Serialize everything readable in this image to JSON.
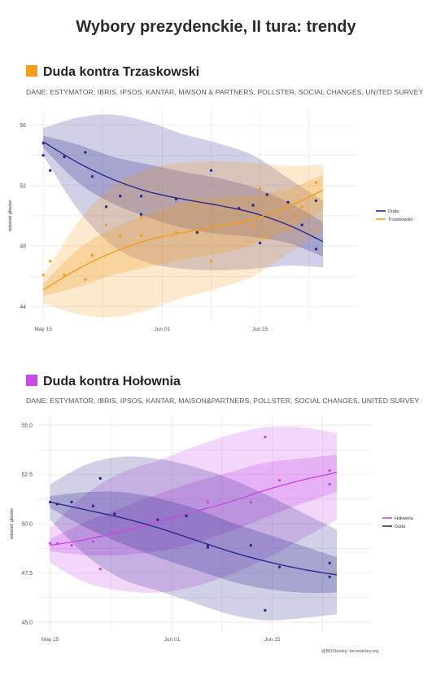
{
  "title": "Wybory prezydenckie, II tura: trendy",
  "credit": "@BDStanley; benstanley.org",
  "colors": {
    "duda": "#2b2b8f",
    "trzaskowski": "#f59c1a",
    "holownia": "#c64be6"
  },
  "chart_data": [
    {
      "type": "line",
      "title": "Duda kontra Trzaskowski",
      "title_swatch": "#f59c1a",
      "subtitle": "DANE: ESTYMATOR, IBRIS, IPSOS, KANTAR, MAISON & PARTNERS, POLLSTER, SOCIAL CHANGES, UNITED SURVEY",
      "ylabel": "odsetek głosów",
      "ylim": [
        43,
        57
      ],
      "yticks": [
        44,
        48,
        52,
        56
      ],
      "xlim": [
        "2020-05-13",
        "2020-06-29"
      ],
      "xticks": [
        {
          "date": "2020-05-15",
          "label": "May 15"
        },
        {
          "date": "2020-06-01",
          "label": "Jun 01"
        },
        {
          "date": "2020-06-15",
          "label": "Jun 15"
        }
      ],
      "grid": true,
      "legend_position": "right",
      "series": [
        {
          "name": "Duda",
          "color": "#2b2b8f",
          "trend": [
            {
              "date": "2020-05-15",
              "y": 54.9,
              "inner": [
                54.5,
                55.3
              ],
              "outer": [
                54.0,
                55.8
              ]
            },
            {
              "date": "2020-05-20",
              "y": 53.5,
              "inner": [
                52.2,
                54.7
              ],
              "outer": [
                50.4,
                56.5
              ]
            },
            {
              "date": "2020-05-25",
              "y": 52.4,
              "inner": [
                50.8,
                53.9
              ],
              "outer": [
                48.0,
                56.7
              ]
            },
            {
              "date": "2020-05-30",
              "y": 51.6,
              "inner": [
                49.9,
                53.4
              ],
              "outer": [
                46.9,
                56.2
              ]
            },
            {
              "date": "2020-06-04",
              "y": 51.1,
              "inner": [
                49.2,
                52.9
              ],
              "outer": [
                46.5,
                55.4
              ]
            },
            {
              "date": "2020-06-09",
              "y": 50.7,
              "inner": [
                48.8,
                52.5
              ],
              "outer": [
                46.4,
                54.8
              ]
            },
            {
              "date": "2020-06-14",
              "y": 50.2,
              "inner": [
                48.6,
                51.9
              ],
              "outer": [
                46.5,
                54.0
              ]
            },
            {
              "date": "2020-06-19",
              "y": 49.4,
              "inner": [
                48.2,
                50.9
              ],
              "outer": [
                46.7,
                52.5
              ]
            },
            {
              "date": "2020-06-24",
              "y": 48.3,
              "inner": [
                47.3,
                49.6
              ],
              "outer": [
                46.6,
                51.0
              ]
            }
          ],
          "points": [
            {
              "date": "2020-05-15",
              "y": 54.8
            },
            {
              "date": "2020-05-15",
              "y": 54.0
            },
            {
              "date": "2020-05-16",
              "y": 53.0
            },
            {
              "date": "2020-05-18",
              "y": 53.9
            },
            {
              "date": "2020-05-21",
              "y": 54.2
            },
            {
              "date": "2020-05-22",
              "y": 52.6
            },
            {
              "date": "2020-05-24",
              "y": 50.6
            },
            {
              "date": "2020-05-26",
              "y": 51.3
            },
            {
              "date": "2020-05-29",
              "y": 51.3
            },
            {
              "date": "2020-05-29",
              "y": 50.1
            },
            {
              "date": "2020-06-03",
              "y": 51.1
            },
            {
              "date": "2020-06-06",
              "y": 48.9
            },
            {
              "date": "2020-06-08",
              "y": 53.0
            },
            {
              "date": "2020-06-12",
              "y": 50.5
            },
            {
              "date": "2020-06-14",
              "y": 50.7
            },
            {
              "date": "2020-06-15",
              "y": 48.2
            },
            {
              "date": "2020-06-16",
              "y": 51.4
            },
            {
              "date": "2020-06-19",
              "y": 50.9
            },
            {
              "date": "2020-06-20",
              "y": 50.0
            },
            {
              "date": "2020-06-21",
              "y": 49.4
            },
            {
              "date": "2020-06-23",
              "y": 51.0
            },
            {
              "date": "2020-06-23",
              "y": 47.8
            }
          ]
        },
        {
          "name": "Trzaskowski",
          "color": "#f59c1a",
          "trend": [
            {
              "date": "2020-05-15",
              "y": 45.1,
              "inner": [
                44.7,
                45.5
              ],
              "outer": [
                44.2,
                46.0
              ]
            },
            {
              "date": "2020-05-20",
              "y": 46.5,
              "inner": [
                45.3,
                47.8
              ],
              "outer": [
                43.5,
                49.6
              ]
            },
            {
              "date": "2020-05-25",
              "y": 47.6,
              "inner": [
                46.1,
                49.2
              ],
              "outer": [
                43.3,
                52.0
              ]
            },
            {
              "date": "2020-05-30",
              "y": 48.4,
              "inner": [
                46.6,
                50.1
              ],
              "outer": [
                43.8,
                53.1
              ]
            },
            {
              "date": "2020-06-04",
              "y": 48.9,
              "inner": [
                47.1,
                50.8
              ],
              "outer": [
                44.6,
                53.5
              ]
            },
            {
              "date": "2020-06-09",
              "y": 49.3,
              "inner": [
                47.5,
                51.2
              ],
              "outer": [
                45.2,
                53.6
              ]
            },
            {
              "date": "2020-06-14",
              "y": 49.8,
              "inner": [
                48.1,
                51.4
              ],
              "outer": [
                46.0,
                53.5
              ]
            },
            {
              "date": "2020-06-19",
              "y": 50.6,
              "inner": [
                49.1,
                51.8
              ],
              "outer": [
                47.5,
                53.3
              ]
            },
            {
              "date": "2020-06-24",
              "y": 51.7,
              "inner": [
                50.4,
                52.7
              ],
              "outer": [
                49.0,
                53.4
              ]
            }
          ],
          "points": [
            {
              "date": "2020-05-15",
              "y": 46.1
            },
            {
              "date": "2020-05-16",
              "y": 47.0
            },
            {
              "date": "2020-05-18",
              "y": 46.1
            },
            {
              "date": "2020-05-21",
              "y": 45.8
            },
            {
              "date": "2020-05-22",
              "y": 47.4
            },
            {
              "date": "2020-05-24",
              "y": 49.4
            },
            {
              "date": "2020-05-26",
              "y": 48.7
            },
            {
              "date": "2020-05-29",
              "y": 48.7
            },
            {
              "date": "2020-05-29",
              "y": 49.9
            },
            {
              "date": "2020-06-03",
              "y": 48.9
            },
            {
              "date": "2020-06-06",
              "y": 51.1
            },
            {
              "date": "2020-06-08",
              "y": 47.0
            },
            {
              "date": "2020-06-12",
              "y": 49.5
            },
            {
              "date": "2020-06-14",
              "y": 49.3
            },
            {
              "date": "2020-06-15",
              "y": 51.8
            },
            {
              "date": "2020-06-16",
              "y": 48.6
            },
            {
              "date": "2020-06-19",
              "y": 49.1
            },
            {
              "date": "2020-06-20",
              "y": 50.0
            },
            {
              "date": "2020-06-21",
              "y": 50.6
            },
            {
              "date": "2020-06-23",
              "y": 49.0
            },
            {
              "date": "2020-06-23",
              "y": 52.2
            }
          ]
        }
      ]
    },
    {
      "type": "line",
      "title": "Duda kontra Hołownia",
      "title_swatch": "#c64be6",
      "subtitle": "DANE: ESTYMATOR, IBRIS, IPSOS, KANTAR, MAISON&PARTNERS, POLLSTER, SOCIAL CHANGES, UNITED SURVEY",
      "ylabel": "odsetek głosów",
      "ylim": [
        44.5,
        55.5
      ],
      "yticks": [
        45.0,
        47.5,
        50.0,
        52.5,
        55.0
      ],
      "xlim": [
        "2020-05-13",
        "2020-06-29"
      ],
      "xticks": [
        {
          "date": "2020-05-15",
          "label": "May 15"
        },
        {
          "date": "2020-06-01",
          "label": "Jun 01"
        },
        {
          "date": "2020-06-15",
          "label": "Jun 15"
        }
      ],
      "grid": true,
      "legend_position": "right",
      "series": [
        {
          "name": "Hołownia",
          "color": "#c64be6",
          "trend": [
            {
              "date": "2020-05-15",
              "y": 48.9,
              "inner": [
                48.6,
                49.2
              ],
              "outer": [
                48.0,
                49.8
              ]
            },
            {
              "date": "2020-05-20",
              "y": 49.2,
              "inner": [
                48.4,
                50.1
              ],
              "outer": [
                47.0,
                51.5
              ]
            },
            {
              "date": "2020-05-25",
              "y": 49.6,
              "inner": [
                48.4,
                50.8
              ],
              "outer": [
                46.6,
                52.6
              ]
            },
            {
              "date": "2020-05-30",
              "y": 50.1,
              "inner": [
                48.6,
                51.5
              ],
              "outer": [
                46.5,
                53.2
              ]
            },
            {
              "date": "2020-06-04",
              "y": 50.6,
              "inner": [
                49.0,
                52.1
              ],
              "outer": [
                46.8,
                53.9
              ]
            },
            {
              "date": "2020-06-09",
              "y": 51.1,
              "inner": [
                49.6,
                52.6
              ],
              "outer": [
                47.4,
                54.5
              ]
            },
            {
              "date": "2020-06-14",
              "y": 51.7,
              "inner": [
                50.3,
                53.1
              ],
              "outer": [
                48.2,
                54.9
              ]
            },
            {
              "date": "2020-06-19",
              "y": 52.2,
              "inner": [
                51.0,
                53.3
              ],
              "outer": [
                49.2,
                54.9
              ]
            },
            {
              "date": "2020-06-24",
              "y": 52.6,
              "inner": [
                51.6,
                53.5
              ],
              "outer": [
                50.2,
                54.6
              ]
            }
          ],
          "points": [
            {
              "date": "2020-05-15",
              "y": 49.0
            },
            {
              "date": "2020-05-16",
              "y": 49.0
            },
            {
              "date": "2020-05-18",
              "y": 48.9
            },
            {
              "date": "2020-05-21",
              "y": 49.1
            },
            {
              "date": "2020-05-22",
              "y": 47.7
            },
            {
              "date": "2020-05-24",
              "y": 49.6
            },
            {
              "date": "2020-06-06",
              "y": 51.1
            },
            {
              "date": "2020-06-12",
              "y": 51.1
            },
            {
              "date": "2020-06-14",
              "y": 54.4
            },
            {
              "date": "2020-06-16",
              "y": 52.2
            },
            {
              "date": "2020-06-23",
              "y": 52.7
            },
            {
              "date": "2020-06-23",
              "y": 52.0
            }
          ]
        },
        {
          "name": "Duda",
          "color": "#2b2b8f",
          "trend": [
            {
              "date": "2020-05-15",
              "y": 51.1,
              "inner": [
                50.8,
                51.4
              ],
              "outer": [
                50.2,
                52.0
              ]
            },
            {
              "date": "2020-05-20",
              "y": 50.7,
              "inner": [
                49.8,
                51.6
              ],
              "outer": [
                48.4,
                53.0
              ]
            },
            {
              "date": "2020-05-25",
              "y": 50.3,
              "inner": [
                49.0,
                51.6
              ],
              "outer": [
                47.2,
                53.4
              ]
            },
            {
              "date": "2020-05-30",
              "y": 49.8,
              "inner": [
                48.3,
                51.3
              ],
              "outer": [
                46.6,
                53.3
              ]
            },
            {
              "date": "2020-06-04",
              "y": 49.2,
              "inner": [
                47.7,
                50.8
              ],
              "outer": [
                46.0,
                52.9
              ]
            },
            {
              "date": "2020-06-09",
              "y": 48.6,
              "inner": [
                47.1,
                50.1
              ],
              "outer": [
                45.4,
                52.3
              ]
            },
            {
              "date": "2020-06-14",
              "y": 48.1,
              "inner": [
                46.7,
                49.5
              ],
              "outer": [
                45.1,
                51.5
              ]
            },
            {
              "date": "2020-06-19",
              "y": 47.7,
              "inner": [
                46.5,
                48.9
              ],
              "outer": [
                45.2,
                50.6
              ]
            },
            {
              "date": "2020-06-24",
              "y": 47.4,
              "inner": [
                46.5,
                48.3
              ],
              "outer": [
                45.4,
                49.7
              ]
            }
          ],
          "points": [
            {
              "date": "2020-05-15",
              "y": 51.1
            },
            {
              "date": "2020-05-16",
              "y": 51.0
            },
            {
              "date": "2020-05-18",
              "y": 51.1
            },
            {
              "date": "2020-05-21",
              "y": 50.9
            },
            {
              "date": "2020-05-22",
              "y": 52.3
            },
            {
              "date": "2020-05-24",
              "y": 50.5
            },
            {
              "date": "2020-05-30",
              "y": 50.2
            },
            {
              "date": "2020-06-03",
              "y": 50.4
            },
            {
              "date": "2020-06-06",
              "y": 48.9
            },
            {
              "date": "2020-06-06",
              "y": 48.8
            },
            {
              "date": "2020-06-12",
              "y": 48.9
            },
            {
              "date": "2020-06-14",
              "y": 45.6
            },
            {
              "date": "2020-06-16",
              "y": 47.8
            },
            {
              "date": "2020-06-23",
              "y": 48.0
            },
            {
              "date": "2020-06-23",
              "y": 47.3
            }
          ]
        }
      ]
    }
  ]
}
